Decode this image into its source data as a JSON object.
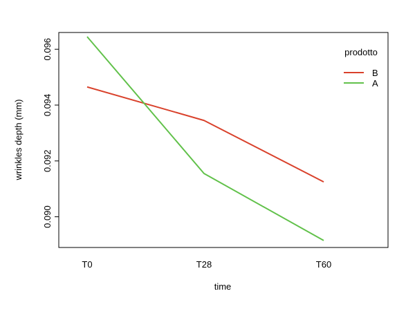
{
  "chart_data": {
    "type": "line",
    "title": "",
    "xlabel": "time",
    "ylabel": "wrinkles depth (mm)",
    "categories": [
      "T0",
      "T28",
      "T60"
    ],
    "ylim": [
      0.0889,
      0.0966
    ],
    "yticks": [
      0.09,
      0.092,
      0.094,
      0.096
    ],
    "ytick_labels": [
      "0.090",
      "0.092",
      "0.094",
      "0.096"
    ],
    "grid": false,
    "legend": {
      "title": "prodotto",
      "placement": "top-right"
    },
    "series": [
      {
        "name": "B",
        "color": "#DF536B",
        "stroke": "#D9412B",
        "values": [
          0.09465,
          0.09345,
          0.09125
        ]
      },
      {
        "name": "A",
        "color": "#61D04F",
        "stroke": "#61C14A",
        "values": [
          0.09645,
          0.09155,
          0.08915
        ]
      }
    ]
  }
}
